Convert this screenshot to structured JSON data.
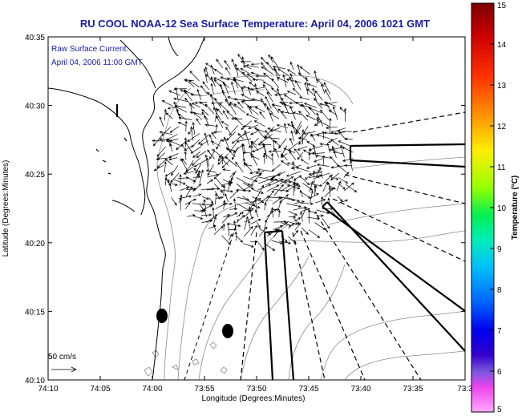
{
  "title": "RU COOL  NOAA-12  Sea Surface Temperature:  April 04, 2006 1021 GMT",
  "annotation": {
    "line1": "Raw Surface Current:",
    "line2": "April 04, 2006 11:00 GMT"
  },
  "scale_label": "50 cm/s",
  "x_axis": {
    "label": "Longitude (Degrees:Minutes)",
    "ticks": [
      "74:10",
      "74:05",
      "74:00",
      "73:55",
      "73:50",
      "73:45",
      "73:40",
      "73:35",
      "73:3"
    ]
  },
  "y_axis": {
    "label": "Latitude (Degrees:Minutes)",
    "ticks": [
      "40:35",
      "40:30",
      "40:25",
      "40:20",
      "40:15",
      "40:10"
    ]
  },
  "colorbar": {
    "label": "Temperature (°C)",
    "ticks": [
      "15",
      "14",
      "13",
      "12",
      "11",
      "10",
      "9",
      "8",
      "7",
      "6",
      "5"
    ],
    "colors": [
      "#8b0000",
      "#ff0000",
      "#ff8000",
      "#ffff00",
      "#00ff00",
      "#00ffff",
      "#0080ff",
      "#0000ff",
      "#6a5acd",
      "#ff00ff",
      "#ffb6ff"
    ]
  }
}
